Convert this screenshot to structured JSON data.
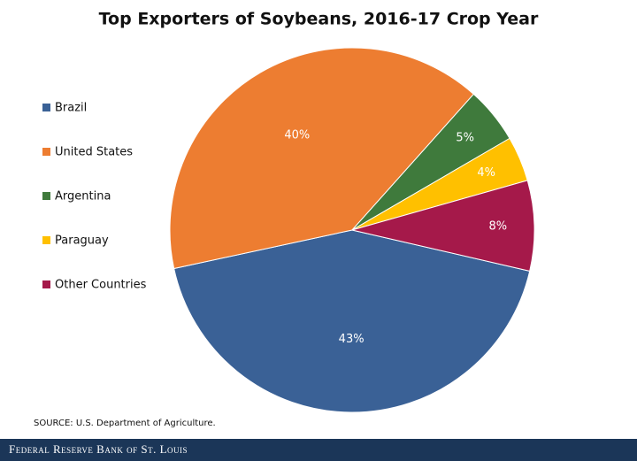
{
  "chart_data": {
    "type": "pie",
    "title": "Top Exporters of Soybeans, 2016-17 Crop Year",
    "categories": [
      "Brazil",
      "United States",
      "Argentina",
      "Paraguay",
      "Other Countries"
    ],
    "values": [
      43,
      40,
      5,
      4,
      8
    ],
    "value_labels": [
      "43%",
      "40%",
      "5%",
      "4%",
      "8%"
    ],
    "colors": [
      "#3a6196",
      "#ed7d31",
      "#3f7a3c",
      "#ffc000",
      "#a5194a"
    ],
    "legend": "left",
    "source": "SOURCE: U.S. Department of Agriculture.",
    "footer": "Federal Reserve Bank of St. Louis"
  }
}
